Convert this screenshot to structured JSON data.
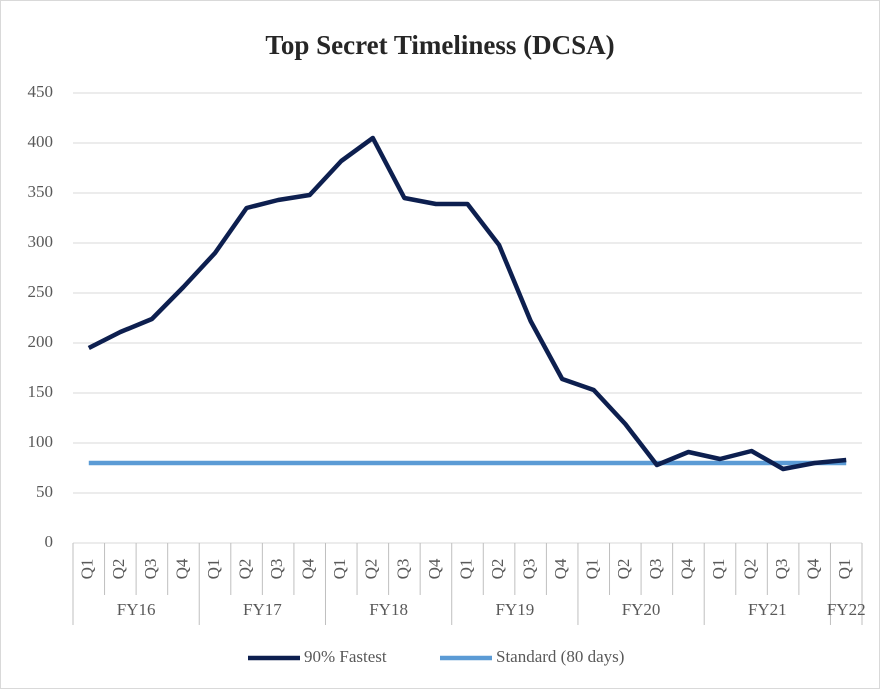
{
  "chart_data": {
    "type": "line",
    "title": "Top Secret Timeliness (DCSA)",
    "groups": [
      {
        "name": "FY16",
        "categories": [
          "Q1",
          "Q2",
          "Q3",
          "Q4"
        ]
      },
      {
        "name": "FY17",
        "categories": [
          "Q1",
          "Q2",
          "Q3",
          "Q4"
        ]
      },
      {
        "name": "FY18",
        "categories": [
          "Q1",
          "Q2",
          "Q3",
          "Q4"
        ]
      },
      {
        "name": "FY19",
        "categories": [
          "Q1",
          "Q2",
          "Q3",
          "Q4"
        ]
      },
      {
        "name": "FY20",
        "categories": [
          "Q1",
          "Q2",
          "Q3",
          "Q4"
        ]
      },
      {
        "name": "FY21",
        "categories": [
          "Q1",
          "Q2",
          "Q3",
          "Q4"
        ]
      },
      {
        "name": "FY22",
        "categories": [
          "Q1"
        ]
      }
    ],
    "series": [
      {
        "name": "90% Fastest",
        "color": "#0d1f4f",
        "values": [
          195,
          211,
          224,
          256,
          290,
          335,
          343,
          348,
          382,
          405,
          345,
          339,
          339,
          298,
          222,
          164,
          153,
          119,
          78,
          91,
          84,
          92,
          74,
          80,
          83
        ]
      },
      {
        "name": "Standard (80 days)",
        "color": "#5b9bd5",
        "values": [
          80,
          80,
          80,
          80,
          80,
          80,
          80,
          80,
          80,
          80,
          80,
          80,
          80,
          80,
          80,
          80,
          80,
          80,
          80,
          80,
          80,
          80,
          80,
          80,
          80
        ]
      }
    ],
    "ylim": [
      0,
      450
    ],
    "yticks": [
      0,
      50,
      100,
      150,
      200,
      250,
      300,
      350,
      400,
      450
    ],
    "grid": true,
    "legend": "bottom"
  }
}
